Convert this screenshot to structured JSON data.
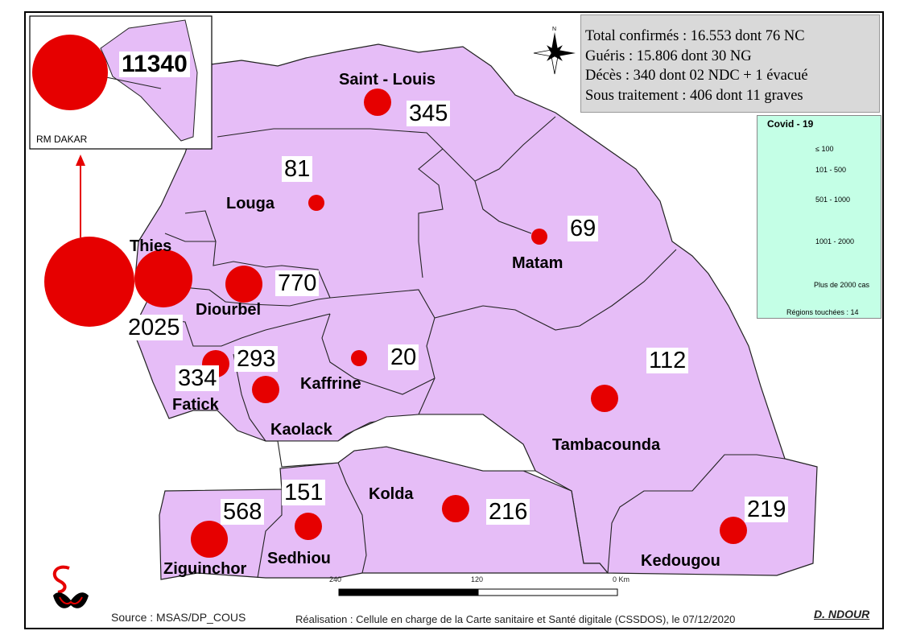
{
  "inset": {
    "label": "RM DAKAR",
    "value": "11340"
  },
  "stats": {
    "line1": "Total confirmés : 16.553  dont 76 NC",
    "line2": "Guéris : 15.806   dont  30 NG",
    "line3": "Décès : 340 dont 02 NDC + 1 évacué",
    "line4": "Sous traitement : 406  dont 11 graves"
  },
  "legend": {
    "title": "Covid - 19",
    "classes": [
      "≤ 100",
      "101 - 500",
      "501 - 1000",
      "1001 - 2000",
      "Plus de 2000 cas"
    ],
    "regions_note": "Régions touchées : 14"
  },
  "regions": [
    {
      "name": "Saint - Louis",
      "cases": "345"
    },
    {
      "name": "Louga",
      "cases": "81"
    },
    {
      "name": "Matam",
      "cases": "69"
    },
    {
      "name": "Thies",
      "cases": "2025"
    },
    {
      "name": "Diourbel",
      "cases": "770"
    },
    {
      "name": "Fatick",
      "cases": "334"
    },
    {
      "name": "Kaolack",
      "cases": "293"
    },
    {
      "name": "Kaffrine",
      "cases": "20"
    },
    {
      "name": "Tambacounda",
      "cases": "112"
    },
    {
      "name": "Kolda",
      "cases": "216"
    },
    {
      "name": "Sedhiou",
      "cases": "151"
    },
    {
      "name": "Ziguinchor",
      "cases": "568"
    },
    {
      "name": "Kedougou",
      "cases": "219"
    }
  ],
  "scalebar": {
    "labels": [
      "240",
      "120",
      "0 Km"
    ]
  },
  "footer": {
    "source": "Source : MSAS/DP_COUS",
    "credit": "Réalisation : Cellule en charge de la Carte sanitaire et Santé digitale (CSSDOS), le 07/12/2020",
    "author": "D. NDOUR"
  },
  "colors": {
    "region_fill": "#e6bdf7",
    "bubble": "#e60000",
    "stats_bg": "#d9d9d9",
    "legend_bg": "#c4ffe6"
  }
}
